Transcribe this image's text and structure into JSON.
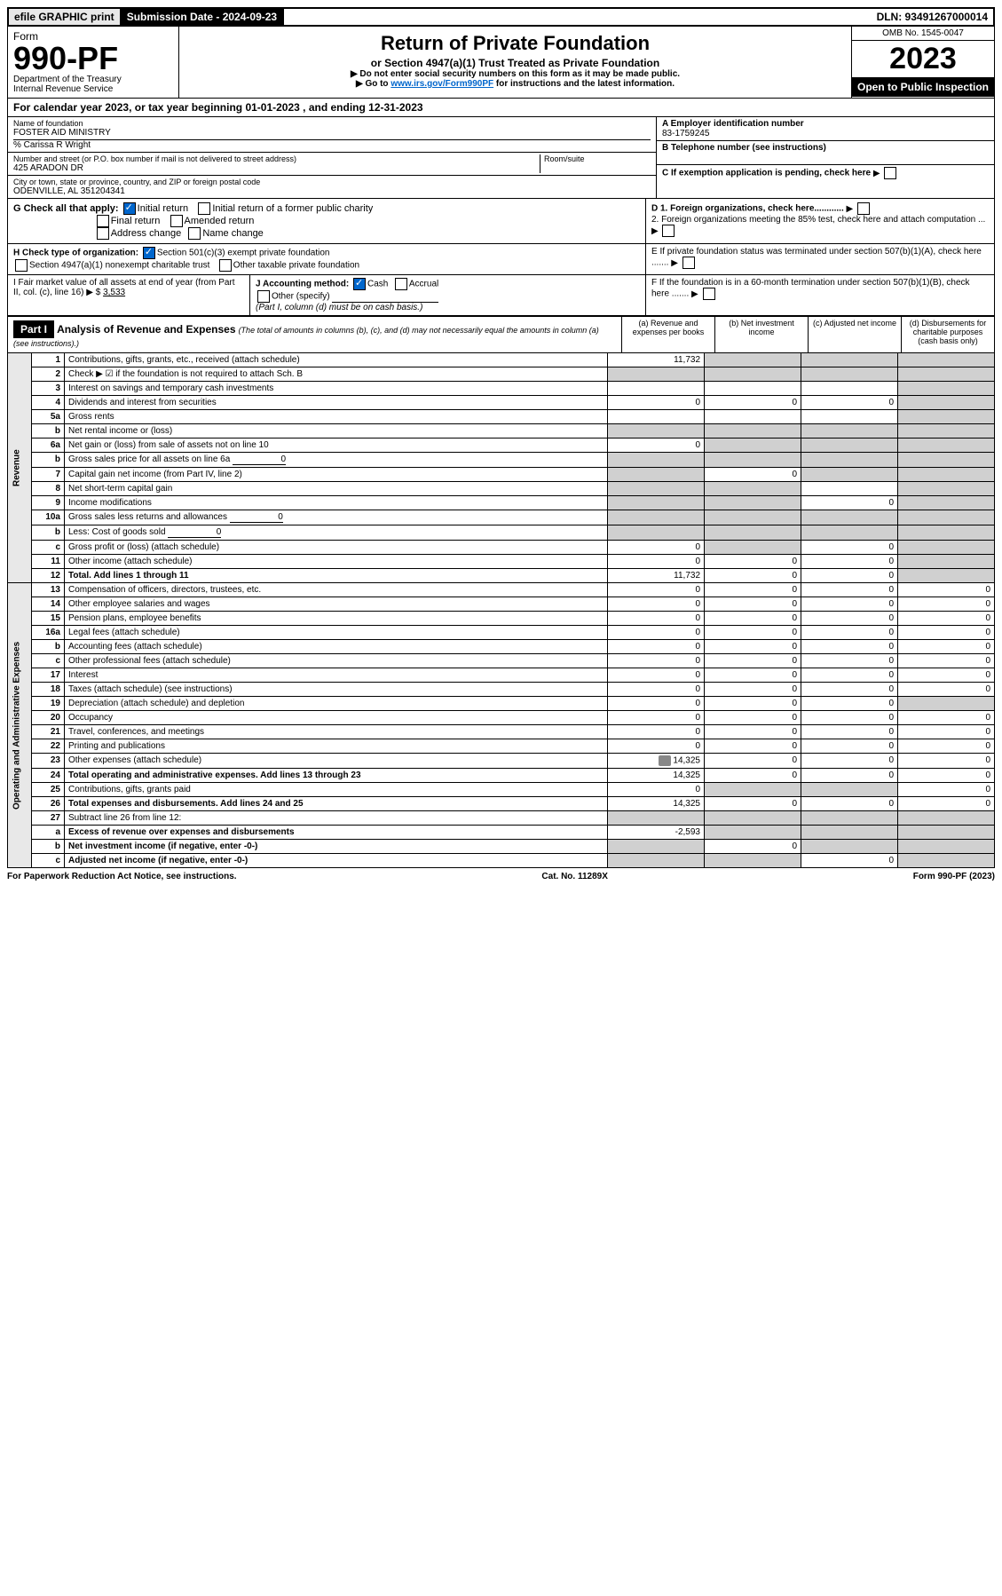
{
  "top_bar": {
    "efile": "efile GRAPHIC print",
    "submission_label": "Submission Date - 2024-09-23",
    "dln": "DLN: 93491267000014"
  },
  "header": {
    "form_word": "Form",
    "form_no": "990-PF",
    "dept1": "Department of the Treasury",
    "dept2": "Internal Revenue Service",
    "title": "Return of Private Foundation",
    "subtitle": "or Section 4947(a)(1) Trust Treated as Private Foundation",
    "warn": "▶ Do not enter social security numbers on this form as it may be made public.",
    "goto_prefix": "▶ Go to ",
    "goto_link": "www.irs.gov/Form990PF",
    "goto_suffix": " for instructions and the latest information.",
    "omb": "OMB No. 1545-0047",
    "year": "2023",
    "open": "Open to Public Inspection"
  },
  "cal_year": "For calendar year 2023, or tax year beginning 01-01-2023                      , and ending 12-31-2023",
  "info": {
    "name_label": "Name of foundation",
    "name": "FOSTER AID MINISTRY",
    "care_of": "% Carissa R Wright",
    "addr_label": "Number and street (or P.O. box number if mail is not delivered to street address)",
    "addr": "425 ARADON DR",
    "room_label": "Room/suite",
    "city_label": "City or town, state or province, country, and ZIP or foreign postal code",
    "city": "ODENVILLE, AL  351204341",
    "a_label": "A Employer identification number",
    "a_val": "83-1759245",
    "b_label": "B Telephone number (see instructions)",
    "c_label": "C If exemption application is pending, check here",
    "d1": "D 1. Foreign organizations, check here............",
    "d2": "2. Foreign organizations meeting the 85% test, check here and attach computation ...",
    "e_label": "E   If private foundation status was terminated under section 507(b)(1)(A), check here .......",
    "f_label": "F   If the foundation is in a 60-month termination under section 507(b)(1)(B), check here .......",
    "g_label": "G Check all that apply:",
    "g_opts": [
      "Initial return",
      "Initial return of a former public charity",
      "Final return",
      "Amended return",
      "Address change",
      "Name change"
    ],
    "h_label": "H Check type of organization:",
    "h_opts": [
      "Section 501(c)(3) exempt private foundation",
      "Section 4947(a)(1) nonexempt charitable trust",
      "Other taxable private foundation"
    ],
    "i_label": "I Fair market value of all assets at end of year (from Part II, col. (c), line 16) ▶ $",
    "i_val": "3,533",
    "j_label": "J Accounting method:",
    "j_opts": [
      "Cash",
      "Accrual"
    ],
    "j_other": "Other (specify)",
    "j_note": "(Part I, column (d) must be on cash basis.)"
  },
  "part1": {
    "label": "Part I",
    "title": "Analysis of Revenue and Expenses",
    "note": "(The total of amounts in columns (b), (c), and (d) may not necessarily equal the amounts in column (a) (see instructions).)",
    "cols": {
      "a": "(a)   Revenue and expenses per books",
      "b": "(b)   Net investment income",
      "c": "(c)   Adjusted net income",
      "d": "(d)   Disbursements for charitable purposes (cash basis only)"
    }
  },
  "revenue_label": "Revenue",
  "expenses_label": "Operating and Administrative Expenses",
  "rows": [
    {
      "n": "1",
      "desc": "Contributions, gifts, grants, etc., received (attach schedule)",
      "a": "11,732",
      "b": "",
      "c": "",
      "d": "",
      "grey_b": true,
      "grey_c": true,
      "grey_d": true
    },
    {
      "n": "2",
      "desc": "Check ▶ ☑ if the foundation is not required to attach Sch. B",
      "a": "",
      "b": "",
      "c": "",
      "d": "",
      "grey_a": true,
      "grey_b": true,
      "grey_c": true,
      "grey_d": true,
      "bold_not": true
    },
    {
      "n": "3",
      "desc": "Interest on savings and temporary cash investments",
      "a": "",
      "b": "",
      "c": "",
      "d": "",
      "grey_d": true
    },
    {
      "n": "4",
      "desc": "Dividends and interest from securities",
      "a": "0",
      "b": "0",
      "c": "0",
      "d": "",
      "grey_d": true
    },
    {
      "n": "5a",
      "desc": "Gross rents",
      "a": "",
      "b": "",
      "c": "",
      "d": "",
      "grey_d": true
    },
    {
      "n": "b",
      "desc": "Net rental income or (loss)",
      "a": "",
      "b": "",
      "c": "",
      "d": "",
      "grey_a": true,
      "grey_b": true,
      "grey_c": true,
      "grey_d": true,
      "inline": true
    },
    {
      "n": "6a",
      "desc": "Net gain or (loss) from sale of assets not on line 10",
      "a": "0",
      "b": "",
      "c": "",
      "d": "",
      "grey_b": true,
      "grey_c": true,
      "grey_d": true
    },
    {
      "n": "b",
      "desc": "Gross sales price for all assets on line 6a",
      "a": "",
      "b": "",
      "c": "",
      "d": "",
      "inline_val": "0",
      "grey_a": true,
      "grey_b": true,
      "grey_c": true,
      "grey_d": true
    },
    {
      "n": "7",
      "desc": "Capital gain net income (from Part IV, line 2)",
      "a": "",
      "b": "0",
      "c": "",
      "d": "",
      "grey_a": true,
      "grey_c": true,
      "grey_d": true
    },
    {
      "n": "8",
      "desc": "Net short-term capital gain",
      "a": "",
      "b": "",
      "c": "",
      "d": "",
      "grey_a": true,
      "grey_b": true,
      "grey_d": true
    },
    {
      "n": "9",
      "desc": "Income modifications",
      "a": "",
      "b": "",
      "c": "0",
      "d": "",
      "grey_a": true,
      "grey_b": true,
      "grey_d": true
    },
    {
      "n": "10a",
      "desc": "Gross sales less returns and allowances",
      "inline_val": "0",
      "grey_a": true,
      "grey_b": true,
      "grey_c": true,
      "grey_d": true
    },
    {
      "n": "b",
      "desc": "Less: Cost of goods sold",
      "inline_val": "0",
      "grey_a": true,
      "grey_b": true,
      "grey_c": true,
      "grey_d": true
    },
    {
      "n": "c",
      "desc": "Gross profit or (loss) (attach schedule)",
      "a": "0",
      "b": "",
      "c": "0",
      "d": "",
      "grey_b": true,
      "grey_d": true
    },
    {
      "n": "11",
      "desc": "Other income (attach schedule)",
      "a": "0",
      "b": "0",
      "c": "0",
      "d": "",
      "grey_d": true
    },
    {
      "n": "12",
      "desc": "Total. Add lines 1 through 11",
      "a": "11,732",
      "b": "0",
      "c": "0",
      "d": "",
      "bold": true,
      "grey_d": true
    },
    {
      "n": "13",
      "desc": "Compensation of officers, directors, trustees, etc.",
      "a": "0",
      "b": "0",
      "c": "0",
      "d": "0",
      "section": "exp"
    },
    {
      "n": "14",
      "desc": "Other employee salaries and wages",
      "a": "0",
      "b": "0",
      "c": "0",
      "d": "0"
    },
    {
      "n": "15",
      "desc": "Pension plans, employee benefits",
      "a": "0",
      "b": "0",
      "c": "0",
      "d": "0"
    },
    {
      "n": "16a",
      "desc": "Legal fees (attach schedule)",
      "a": "0",
      "b": "0",
      "c": "0",
      "d": "0"
    },
    {
      "n": "b",
      "desc": "Accounting fees (attach schedule)",
      "a": "0",
      "b": "0",
      "c": "0",
      "d": "0"
    },
    {
      "n": "c",
      "desc": "Other professional fees (attach schedule)",
      "a": "0",
      "b": "0",
      "c": "0",
      "d": "0"
    },
    {
      "n": "17",
      "desc": "Interest",
      "a": "0",
      "b": "0",
      "c": "0",
      "d": "0"
    },
    {
      "n": "18",
      "desc": "Taxes (attach schedule) (see instructions)",
      "a": "0",
      "b": "0",
      "c": "0",
      "d": "0"
    },
    {
      "n": "19",
      "desc": "Depreciation (attach schedule) and depletion",
      "a": "0",
      "b": "0",
      "c": "0",
      "d": "",
      "grey_d": true
    },
    {
      "n": "20",
      "desc": "Occupancy",
      "a": "0",
      "b": "0",
      "c": "0",
      "d": "0"
    },
    {
      "n": "21",
      "desc": "Travel, conferences, and meetings",
      "a": "0",
      "b": "0",
      "c": "0",
      "d": "0"
    },
    {
      "n": "22",
      "desc": "Printing and publications",
      "a": "0",
      "b": "0",
      "c": "0",
      "d": "0"
    },
    {
      "n": "23",
      "desc": "Other expenses (attach schedule)",
      "a": "14,325",
      "b": "0",
      "c": "0",
      "d": "0",
      "has_icon": true
    },
    {
      "n": "24",
      "desc": "Total operating and administrative expenses. Add lines 13 through 23",
      "a": "14,325",
      "b": "0",
      "c": "0",
      "d": "0",
      "bold": true
    },
    {
      "n": "25",
      "desc": "Contributions, gifts, grants paid",
      "a": "0",
      "b": "",
      "c": "",
      "d": "0",
      "grey_b": true,
      "grey_c": true
    },
    {
      "n": "26",
      "desc": "Total expenses and disbursements. Add lines 24 and 25",
      "a": "14,325",
      "b": "0",
      "c": "0",
      "d": "0",
      "bold": true
    },
    {
      "n": "27",
      "desc": "Subtract line 26 from line 12:",
      "grey_a": true,
      "grey_b": true,
      "grey_c": true,
      "grey_d": true
    },
    {
      "n": "a",
      "desc": "Excess of revenue over expenses and disbursements",
      "a": "-2,593",
      "b": "",
      "c": "",
      "d": "",
      "bold": true,
      "grey_b": true,
      "grey_c": true,
      "grey_d": true
    },
    {
      "n": "b",
      "desc": "Net investment income (if negative, enter -0-)",
      "a": "",
      "b": "0",
      "c": "",
      "d": "",
      "bold": true,
      "grey_a": true,
      "grey_c": true,
      "grey_d": true
    },
    {
      "n": "c",
      "desc": "Adjusted net income (if negative, enter -0-)",
      "a": "",
      "b": "",
      "c": "0",
      "d": "",
      "bold": true,
      "grey_a": true,
      "grey_b": true,
      "grey_d": true
    }
  ],
  "footer": {
    "left": "For Paperwork Reduction Act Notice, see instructions.",
    "center": "Cat. No. 11289X",
    "right": "Form 990-PF (2023)"
  }
}
